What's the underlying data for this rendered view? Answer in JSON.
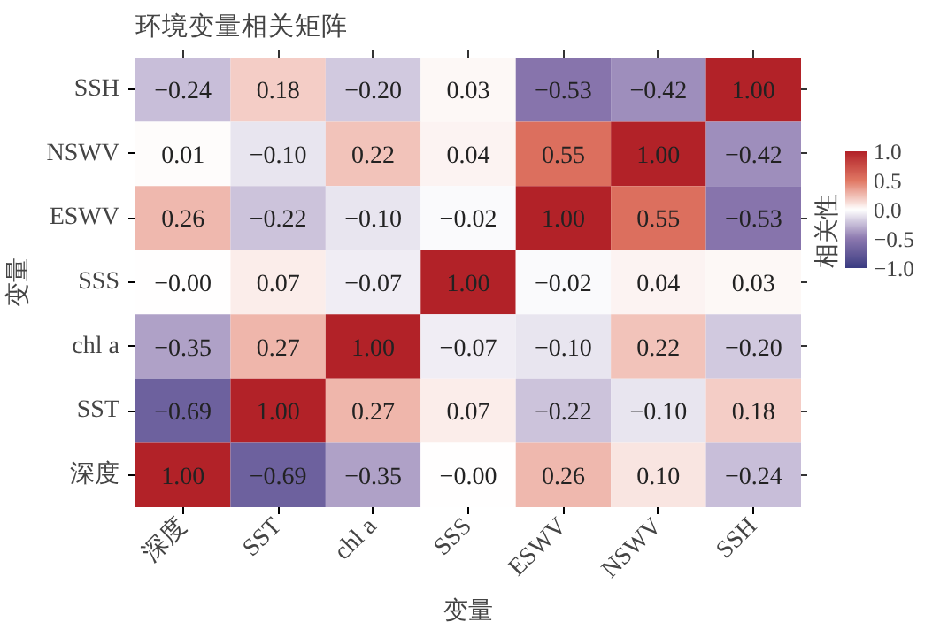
{
  "chart_data": {
    "type": "heatmap",
    "title": "环境变量相关矩阵",
    "xlabel": "变量",
    "ylabel": "变量",
    "clabel": "相关性",
    "categories": [
      "深度",
      "SST",
      "chl a",
      "SSS",
      "ESWV",
      "NSWV",
      "SSH"
    ],
    "y_categories": [
      "SSH",
      "NSWV",
      "ESWV",
      "SSS",
      "chl a",
      "SST",
      "深度"
    ],
    "cells": [
      [
        -0.24,
        0.18,
        -0.2,
        0.03,
        -0.53,
        -0.42,
        1.0
      ],
      [
        0.01,
        -0.1,
        0.22,
        0.04,
        0.55,
        1.0,
        -0.42
      ],
      [
        0.26,
        -0.22,
        -0.1,
        -0.02,
        1.0,
        0.55,
        -0.53
      ],
      [
        0.0,
        0.07,
        -0.07,
        1.0,
        -0.02,
        0.04,
        0.03
      ],
      [
        -0.35,
        0.27,
        1.0,
        -0.07,
        -0.1,
        0.22,
        -0.2
      ],
      [
        -0.69,
        1.0,
        0.27,
        0.07,
        -0.22,
        -0.1,
        0.18
      ],
      [
        1.0,
        -0.69,
        -0.35,
        0.0,
        0.26,
        0.1,
        -0.24
      ]
    ],
    "cell_labels": [
      [
        "−0.24",
        "0.18",
        "−0.20",
        "0.03",
        "−0.53",
        "−0.42",
        "1.00"
      ],
      [
        "0.01",
        "−0.10",
        "0.22",
        "0.04",
        "0.55",
        "1.00",
        "−0.42"
      ],
      [
        "0.26",
        "−0.22",
        "−0.10",
        "−0.02",
        "1.00",
        "0.55",
        "−0.53"
      ],
      [
        "−0.00",
        "0.07",
        "−0.07",
        "1.00",
        "−0.02",
        "0.04",
        "0.03"
      ],
      [
        "−0.35",
        "0.27",
        "1.00",
        "−0.07",
        "−0.10",
        "0.22",
        "−0.20"
      ],
      [
        "−0.69",
        "1.00",
        "0.27",
        "0.07",
        "−0.22",
        "−0.10",
        "0.18"
      ],
      [
        "1.00",
        "−0.69",
        "−0.35",
        "−0.00",
        "0.26",
        "0.10",
        "−0.24"
      ]
    ],
    "clim": [
      -1,
      1
    ],
    "cticks": [
      {
        "value": 1,
        "label": "1.0"
      },
      {
        "value": 0.5,
        "label": "0.5"
      },
      {
        "value": 0,
        "label": "0.0"
      },
      {
        "value": -0.5,
        "label": "−0.5"
      },
      {
        "value": -1,
        "label": "−1.0"
      }
    ]
  }
}
